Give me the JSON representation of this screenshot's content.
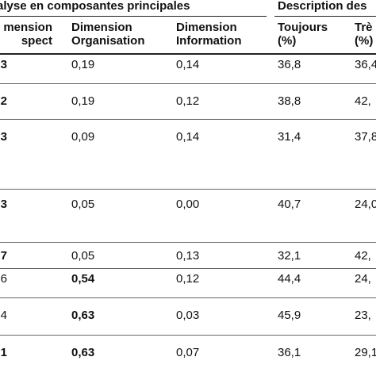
{
  "table": {
    "header": [
      "alyse en composantes principales",
      "Description des"
    ],
    "columns": [
      "mension\nspect",
      "Dimension\nOrganisation",
      "Dimension\nInformation",
      "Toujours\n(%)",
      "Trè\n(%)"
    ],
    "rows": [
      [
        "3",
        "0,19",
        "0,14",
        "36,8",
        "36,4"
      ],
      [
        "2",
        "0,19",
        "0,12",
        "38,8",
        "42,"
      ],
      [
        "3",
        "0,09",
        "0,14",
        "31,4",
        "37,8"
      ],
      [
        "3",
        "0,05",
        "0,00",
        "40,7",
        "24,0"
      ],
      [
        "7",
        "0,05",
        "0,13",
        "32,1",
        "42,"
      ],
      [
        "6",
        "0,54",
        "0,12",
        "44,4",
        "24,"
      ],
      [
        "4",
        "0,63",
        "0,03",
        "45,9",
        "23,"
      ],
      [
        "1",
        "0,63",
        "0,07",
        "36,1",
        "29,1"
      ]
    ]
  }
}
